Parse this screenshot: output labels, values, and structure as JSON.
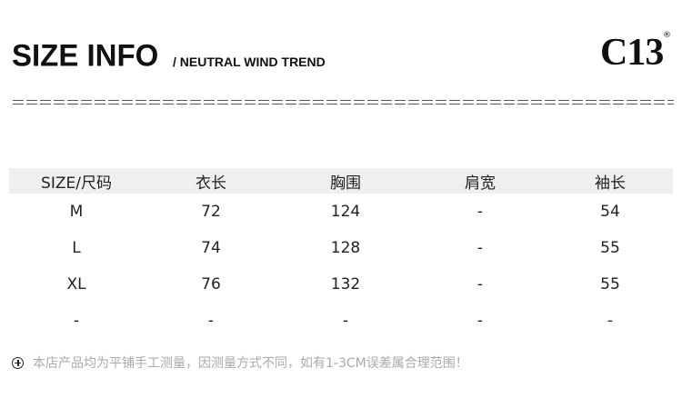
{
  "header": {
    "title": "SIZE INFO",
    "subtitle": "/ NEUTRAL WIND TREND",
    "logo": "C13",
    "logo_mark": "®"
  },
  "table": {
    "columns": [
      "SIZE/尺码",
      "衣长",
      "胸围",
      "肩宽",
      "袖长"
    ],
    "rows": [
      [
        "M",
        "72",
        "124",
        "-",
        "54"
      ],
      [
        "L",
        "74",
        "128",
        "-",
        "55"
      ],
      [
        "XL",
        "76",
        "132",
        "-",
        "55"
      ],
      [
        "-",
        "-",
        "-",
        "-",
        "-"
      ]
    ]
  },
  "note": {
    "icon": "plus-circle-icon",
    "text": "本店产品均为平铺手工测量，因测量方式不同，如有1-3CM误差属合理范围！"
  }
}
